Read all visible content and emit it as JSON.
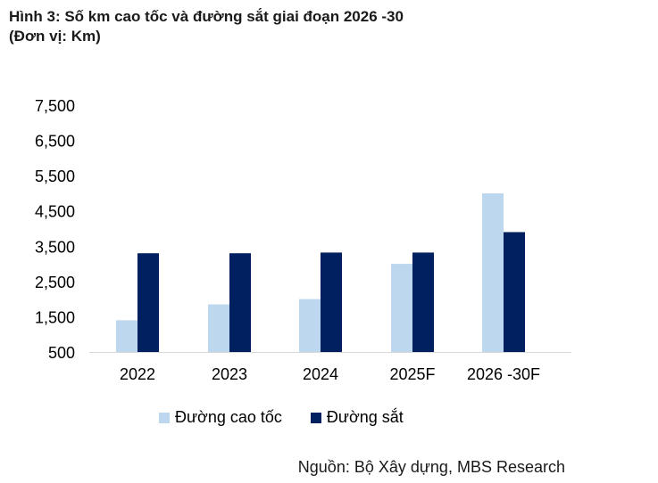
{
  "title": {
    "line1": "Hình 3: Số km cao tốc và đường sắt giai đoạn 2026 -30",
    "line2": "(Đơn vị: Km)"
  },
  "source": "Nguồn: Bộ Xây dựng, MBS Research",
  "colors": {
    "highway": "#bdd7ee",
    "railway": "#002060"
  },
  "chart_data": {
    "type": "bar",
    "categories": [
      "2022",
      "2023",
      "2024",
      "2025F",
      "2026 -30F"
    ],
    "series": [
      {
        "name": "Đường cao tốc",
        "values": [
          1400,
          1850,
          2000,
          3000,
          5000
        ]
      },
      {
        "name": "Đường sắt",
        "values": [
          3300,
          3300,
          3320,
          3320,
          3900
        ]
      }
    ],
    "yticks": [
      "7,500",
      "6,500",
      "5,500",
      "4,500",
      "3,500",
      "2,500",
      "1,500",
      "500"
    ],
    "ylim": [
      500,
      7500
    ],
    "grid": false,
    "legend_position": "bottom"
  }
}
